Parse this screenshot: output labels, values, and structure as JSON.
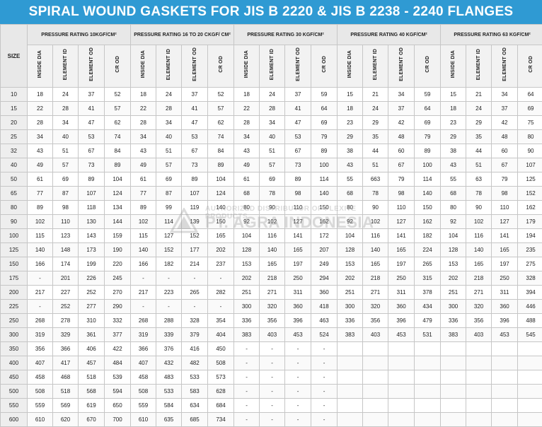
{
  "title": "SPIRAL WOUND GASKETS FOR JIS B 2220 & JIS B 2238 - 2240 FLANGES",
  "size_header": "SIZE",
  "groups": [
    "PRESSURE RATING 10KGF/CM²",
    "PRESSURE RATING 16 TO 20 CKGF/ CM²",
    "PRESSURE RATING 30 KGF/CM²",
    "PRESSURE RATING 40 KGF/CM²",
    "PRESSURE RATING 63 KGF/CM²"
  ],
  "subheaders": [
    "INSIDE DIA",
    "ELEMENT ID",
    "ELEMENT OD",
    "CR OD"
  ],
  "watermark": {
    "top": "AUTHORIZED DISTRIBUTOR OF FLEXITE PRODUCTS",
    "main": "PT. AGRA INDONESIA"
  },
  "rows": [
    [
      "10",
      "18",
      "24",
      "37",
      "52",
      "18",
      "24",
      "37",
      "52",
      "18",
      "24",
      "37",
      "59",
      "15",
      "21",
      "34",
      "59",
      "15",
      "21",
      "34",
      "64"
    ],
    [
      "15",
      "22",
      "28",
      "41",
      "57",
      "22",
      "28",
      "41",
      "57",
      "22",
      "28",
      "41",
      "64",
      "18",
      "24",
      "37",
      "64",
      "18",
      "24",
      "37",
      "69"
    ],
    [
      "20",
      "28",
      "34",
      "47",
      "62",
      "28",
      "34",
      "47",
      "62",
      "28",
      "34",
      "47",
      "69",
      "23",
      "29",
      "42",
      "69",
      "23",
      "29",
      "42",
      "75"
    ],
    [
      "25",
      "34",
      "40",
      "53",
      "74",
      "34",
      "40",
      "53",
      "74",
      "34",
      "40",
      "53",
      "79",
      "29",
      "35",
      "48",
      "79",
      "29",
      "35",
      "48",
      "80"
    ],
    [
      "32",
      "43",
      "51",
      "67",
      "84",
      "43",
      "51",
      "67",
      "84",
      "43",
      "51",
      "67",
      "89",
      "38",
      "44",
      "60",
      "89",
      "38",
      "44",
      "60",
      "90"
    ],
    [
      "40",
      "49",
      "57",
      "73",
      "89",
      "49",
      "57",
      "73",
      "89",
      "49",
      "57",
      "73",
      "100",
      "43",
      "51",
      "67",
      "100",
      "43",
      "51",
      "67",
      "107"
    ],
    [
      "50",
      "61",
      "69",
      "89",
      "104",
      "61",
      "69",
      "89",
      "104",
      "61",
      "69",
      "89",
      "114",
      "55",
      "663",
      "79",
      "114",
      "55",
      "63",
      "79",
      "125"
    ],
    [
      "65",
      "77",
      "87",
      "107",
      "124",
      "77",
      "87",
      "107",
      "124",
      "68",
      "78",
      "98",
      "140",
      "68",
      "78",
      "98",
      "140",
      "68",
      "78",
      "98",
      "152"
    ],
    [
      "80",
      "89",
      "98",
      "118",
      "134",
      "89",
      "99",
      "119",
      "140",
      "80",
      "90",
      "110",
      "150",
      "80",
      "90",
      "110",
      "150",
      "80",
      "90",
      "110",
      "162"
    ],
    [
      "90",
      "102",
      "110",
      "130",
      "144",
      "102",
      "114",
      "139",
      "150",
      "92",
      "102",
      "127",
      "162",
      "92",
      "102",
      "127",
      "162",
      "92",
      "102",
      "127",
      "179"
    ],
    [
      "100",
      "115",
      "123",
      "143",
      "159",
      "115",
      "127",
      "152",
      "165",
      "104",
      "116",
      "141",
      "172",
      "104",
      "116",
      "141",
      "182",
      "104",
      "116",
      "141",
      "194"
    ],
    [
      "125",
      "140",
      "148",
      "173",
      "190",
      "140",
      "152",
      "177",
      "202",
      "128",
      "140",
      "165",
      "207",
      "128",
      "140",
      "165",
      "224",
      "128",
      "140",
      "165",
      "235"
    ],
    [
      "150",
      "166",
      "174",
      "199",
      "220",
      "166",
      "182",
      "214",
      "237",
      "153",
      "165",
      "197",
      "249",
      "153",
      "165",
      "197",
      "265",
      "153",
      "165",
      "197",
      "275"
    ],
    [
      "175",
      "-",
      "201",
      "226",
      "245",
      "-",
      "-",
      "-",
      "-",
      "202",
      "218",
      "250",
      "294",
      "202",
      "218",
      "250",
      "315",
      "202",
      "218",
      "250",
      "328"
    ],
    [
      "200",
      "217",
      "227",
      "252",
      "270",
      "217",
      "223",
      "265",
      "282",
      "251",
      "271",
      "311",
      "360",
      "251",
      "271",
      "311",
      "378",
      "251",
      "271",
      "311",
      "394"
    ],
    [
      "225",
      "-",
      "252",
      "277",
      "290",
      "-",
      "-",
      "-",
      "-",
      "300",
      "320",
      "360",
      "418",
      "300",
      "320",
      "360",
      "434",
      "300",
      "320",
      "360",
      "446"
    ],
    [
      "250",
      "268",
      "278",
      "310",
      "332",
      "268",
      "288",
      "328",
      "354",
      "336",
      "356",
      "396",
      "463",
      "336",
      "356",
      "396",
      "479",
      "336",
      "356",
      "396",
      "488"
    ],
    [
      "300",
      "319",
      "329",
      "361",
      "377",
      "319",
      "339",
      "379",
      "404",
      "383",
      "403",
      "453",
      "524",
      "383",
      "403",
      "453",
      "531",
      "383",
      "403",
      "453",
      "545"
    ],
    [
      "350",
      "356",
      "366",
      "406",
      "422",
      "366",
      "376",
      "416",
      "450",
      "-",
      "-",
      "-",
      "-",
      "",
      "",
      "",
      "",
      "",
      "",
      "",
      ""
    ],
    [
      "400",
      "407",
      "417",
      "457",
      "484",
      "407",
      "432",
      "482",
      "508",
      "-",
      "-",
      "-",
      "-",
      "",
      "",
      "",
      "",
      "",
      "",
      "",
      ""
    ],
    [
      "450",
      "458",
      "468",
      "518",
      "539",
      "458",
      "483",
      "533",
      "573",
      "-",
      "-",
      "-",
      "-",
      "",
      "",
      "",
      "",
      "",
      "",
      "",
      ""
    ],
    [
      "500",
      "508",
      "518",
      "568",
      "594",
      "508",
      "533",
      "583",
      "628",
      "-",
      "-",
      "-",
      "-",
      "",
      "",
      "",
      "",
      "",
      "",
      "",
      ""
    ],
    [
      "550",
      "559",
      "569",
      "619",
      "650",
      "559",
      "584",
      "634",
      "684",
      "-",
      "-",
      "-",
      "-",
      "",
      "",
      "",
      "",
      "",
      "",
      "",
      ""
    ],
    [
      "600",
      "610",
      "620",
      "670",
      "700",
      "610",
      "635",
      "685",
      "734",
      "-",
      "-",
      "-",
      "-",
      "",
      "",
      "",
      "",
      "",
      "",
      "",
      ""
    ]
  ]
}
